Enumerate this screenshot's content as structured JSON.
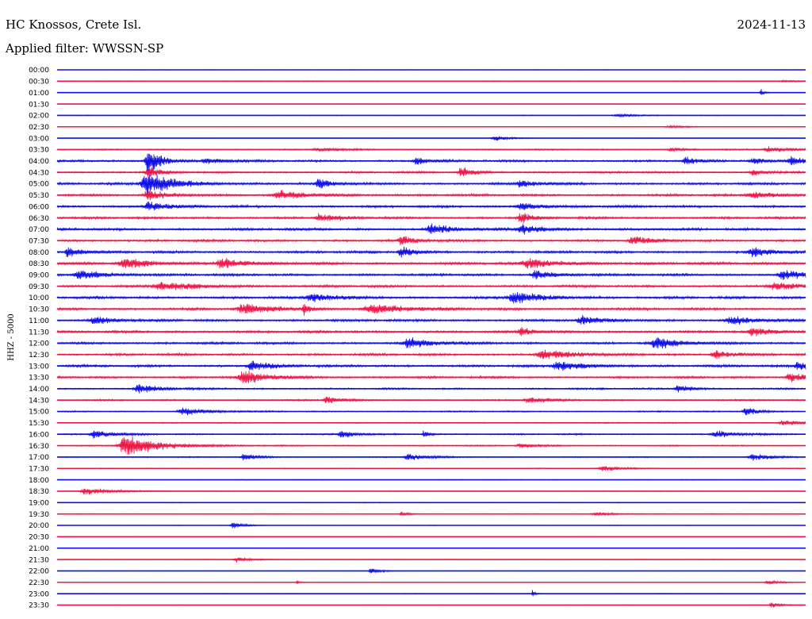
{
  "header": {
    "station": "HC Knossos, Crete Isl.",
    "filter": "Applied filter: WWSSN-SP",
    "date": "2024-11-13"
  },
  "colors": {
    "blue": "#1010e6",
    "red": "#ee1848"
  },
  "chart_data": {
    "type": "line",
    "title": "HC Knossos, Crete Isl.",
    "subtitle": "Applied filter: WWSSN-SP",
    "date": "2024-11-13",
    "ylabel": "HHZ - 5000",
    "xlabel": "",
    "grid": false,
    "rows": [
      {
        "label": "00:00",
        "color": "blue",
        "noise": 0.25,
        "events": []
      },
      {
        "label": "00:30",
        "color": "red",
        "noise": 0.4,
        "events": [
          {
            "x": 0.97,
            "amp": 0.25,
            "dur": 0.03
          }
        ]
      },
      {
        "label": "01:00",
        "color": "blue",
        "noise": 0.25,
        "events": [
          {
            "x": 0.94,
            "amp": 1.3,
            "dur": 0.006
          }
        ]
      },
      {
        "label": "01:30",
        "color": "red",
        "noise": 0.25,
        "events": []
      },
      {
        "label": "02:00",
        "color": "blue",
        "noise": 0.35,
        "events": [
          {
            "x": 0.75,
            "amp": 0.4,
            "dur": 0.04
          }
        ]
      },
      {
        "label": "02:30",
        "color": "red",
        "noise": 0.3,
        "events": [
          {
            "x": 0.82,
            "amp": 0.3,
            "dur": 0.04
          }
        ]
      },
      {
        "label": "03:00",
        "color": "blue",
        "noise": 0.25,
        "events": [
          {
            "x": 0.585,
            "amp": 0.9,
            "dur": 0.02
          }
        ]
      },
      {
        "label": "03:30",
        "color": "red",
        "noise": 0.7,
        "events": [
          {
            "x": 0.35,
            "amp": 0.5,
            "dur": 0.04
          },
          {
            "x": 0.82,
            "amp": 0.7,
            "dur": 0.02
          },
          {
            "x": 0.95,
            "amp": 0.9,
            "dur": 0.03
          }
        ]
      },
      {
        "label": "04:00",
        "color": "blue",
        "noise": 1.2,
        "events": [
          {
            "x": 0.122,
            "amp": 4.2,
            "dur": 0.02
          },
          {
            "x": 0.2,
            "amp": 0.9,
            "dur": 0.03
          },
          {
            "x": 0.48,
            "amp": 1.2,
            "dur": 0.02
          },
          {
            "x": 0.84,
            "amp": 1.0,
            "dur": 0.02
          },
          {
            "x": 0.93,
            "amp": 1.0,
            "dur": 0.02
          },
          {
            "x": 0.98,
            "amp": 1.2,
            "dur": 0.03
          }
        ]
      },
      {
        "label": "04:30",
        "color": "red",
        "noise": 1.1,
        "events": [
          {
            "x": 0.122,
            "amp": 1.6,
            "dur": 0.02
          },
          {
            "x": 0.54,
            "amp": 1.5,
            "dur": 0.02
          },
          {
            "x": 0.93,
            "amp": 1.0,
            "dur": 0.02
          }
        ]
      },
      {
        "label": "05:00",
        "color": "blue",
        "noise": 1.3,
        "events": [
          {
            "x": 0.122,
            "amp": 3.6,
            "dur": 0.04
          },
          {
            "x": 0.35,
            "amp": 1.4,
            "dur": 0.02
          },
          {
            "x": 0.62,
            "amp": 0.9,
            "dur": 0.03
          }
        ]
      },
      {
        "label": "05:30",
        "color": "red",
        "noise": 1.2,
        "events": [
          {
            "x": 0.122,
            "amp": 1.5,
            "dur": 0.03
          },
          {
            "x": 0.3,
            "amp": 1.1,
            "dur": 0.05
          },
          {
            "x": 0.93,
            "amp": 1.0,
            "dur": 0.04
          }
        ]
      },
      {
        "label": "06:00",
        "color": "blue",
        "noise": 1.3,
        "events": [
          {
            "x": 0.122,
            "amp": 1.4,
            "dur": 0.03
          },
          {
            "x": 0.62,
            "amp": 1.1,
            "dur": 0.03
          }
        ]
      },
      {
        "label": "06:30",
        "color": "red",
        "noise": 1.3,
        "events": [
          {
            "x": 0.35,
            "amp": 1.2,
            "dur": 0.03
          },
          {
            "x": 0.62,
            "amp": 1.5,
            "dur": 0.02
          }
        ]
      },
      {
        "label": "07:00",
        "color": "blue",
        "noise": 1.4,
        "events": [
          {
            "x": 0.5,
            "amp": 1.6,
            "dur": 0.03
          },
          {
            "x": 0.62,
            "amp": 1.5,
            "dur": 0.03
          }
        ]
      },
      {
        "label": "07:30",
        "color": "red",
        "noise": 1.3,
        "events": [
          {
            "x": 0.46,
            "amp": 1.4,
            "dur": 0.02
          },
          {
            "x": 0.77,
            "amp": 1.2,
            "dur": 0.03
          }
        ]
      },
      {
        "label": "08:00",
        "color": "blue",
        "noise": 1.3,
        "events": [
          {
            "x": 0.015,
            "amp": 1.6,
            "dur": 0.02
          },
          {
            "x": 0.46,
            "amp": 1.6,
            "dur": 0.02
          },
          {
            "x": 0.93,
            "amp": 1.5,
            "dur": 0.03
          }
        ]
      },
      {
        "label": "08:30",
        "color": "red",
        "noise": 1.4,
        "events": [
          {
            "x": 0.09,
            "amp": 1.4,
            "dur": 0.05
          },
          {
            "x": 0.22,
            "amp": 1.7,
            "dur": 0.03
          },
          {
            "x": 0.63,
            "amp": 1.3,
            "dur": 0.05
          }
        ]
      },
      {
        "label": "09:00",
        "color": "blue",
        "noise": 1.3,
        "events": [
          {
            "x": 0.03,
            "amp": 1.4,
            "dur": 0.04
          },
          {
            "x": 0.64,
            "amp": 1.4,
            "dur": 0.03
          },
          {
            "x": 0.97,
            "amp": 1.4,
            "dur": 0.04
          }
        ]
      },
      {
        "label": "09:30",
        "color": "red",
        "noise": 1.3,
        "events": [
          {
            "x": 0.14,
            "amp": 1.3,
            "dur": 0.06
          },
          {
            "x": 0.96,
            "amp": 1.2,
            "dur": 0.04
          }
        ]
      },
      {
        "label": "10:00",
        "color": "blue",
        "noise": 1.4,
        "events": [
          {
            "x": 0.34,
            "amp": 1.3,
            "dur": 0.04
          },
          {
            "x": 0.61,
            "amp": 1.7,
            "dur": 0.04
          }
        ]
      },
      {
        "label": "10:30",
        "color": "red",
        "noise": 1.4,
        "events": [
          {
            "x": 0.25,
            "amp": 1.4,
            "dur": 0.05
          },
          {
            "x": 0.33,
            "amp": 1.5,
            "dur": 0.01
          },
          {
            "x": 0.42,
            "amp": 1.3,
            "dur": 0.06
          }
        ]
      },
      {
        "label": "11:00",
        "color": "blue",
        "noise": 1.3,
        "events": [
          {
            "x": 0.05,
            "amp": 1.3,
            "dur": 0.03
          },
          {
            "x": 0.7,
            "amp": 1.3,
            "dur": 0.03
          },
          {
            "x": 0.9,
            "amp": 1.3,
            "dur": 0.04
          }
        ]
      },
      {
        "label": "11:30",
        "color": "red",
        "noise": 1.3,
        "events": [
          {
            "x": 0.62,
            "amp": 1.3,
            "dur": 0.02
          },
          {
            "x": 0.93,
            "amp": 1.2,
            "dur": 0.03
          }
        ]
      },
      {
        "label": "12:00",
        "color": "blue",
        "noise": 1.3,
        "events": [
          {
            "x": 0.47,
            "amp": 1.4,
            "dur": 0.04
          },
          {
            "x": 0.8,
            "amp": 1.5,
            "dur": 0.04
          }
        ]
      },
      {
        "label": "12:30",
        "color": "red",
        "noise": 1.3,
        "events": [
          {
            "x": 0.65,
            "amp": 1.3,
            "dur": 0.05
          },
          {
            "x": 0.88,
            "amp": 1.2,
            "dur": 0.03
          }
        ]
      },
      {
        "label": "13:00",
        "color": "blue",
        "noise": 1.3,
        "events": [
          {
            "x": 0.26,
            "amp": 1.5,
            "dur": 0.03
          },
          {
            "x": 0.67,
            "amp": 1.4,
            "dur": 0.04
          },
          {
            "x": 0.99,
            "amp": 1.2,
            "dur": 0.02
          }
        ]
      },
      {
        "label": "13:30",
        "color": "red",
        "noise": 1.2,
        "events": [
          {
            "x": 0.25,
            "amp": 1.9,
            "dur": 0.04
          },
          {
            "x": 0.98,
            "amp": 1.3,
            "dur": 0.03
          }
        ]
      },
      {
        "label": "14:00",
        "color": "blue",
        "noise": 0.9,
        "events": [
          {
            "x": 0.11,
            "amp": 1.3,
            "dur": 0.03
          },
          {
            "x": 0.83,
            "amp": 1.3,
            "dur": 0.02
          }
        ]
      },
      {
        "label": "14:30",
        "color": "red",
        "noise": 0.8,
        "events": [
          {
            "x": 0.36,
            "amp": 1.2,
            "dur": 0.02
          },
          {
            "x": 0.63,
            "amp": 1.0,
            "dur": 0.03
          }
        ]
      },
      {
        "label": "15:00",
        "color": "blue",
        "noise": 0.7,
        "events": [
          {
            "x": 0.17,
            "amp": 1.1,
            "dur": 0.04
          },
          {
            "x": 0.92,
            "amp": 1.3,
            "dur": 0.02
          }
        ]
      },
      {
        "label": "15:30",
        "color": "red",
        "noise": 0.6,
        "events": [
          {
            "x": 0.97,
            "amp": 0.8,
            "dur": 0.03
          }
        ]
      },
      {
        "label": "16:00",
        "color": "blue",
        "noise": 0.8,
        "events": [
          {
            "x": 0.05,
            "amp": 1.1,
            "dur": 0.03
          },
          {
            "x": 0.38,
            "amp": 1.2,
            "dur": 0.02
          },
          {
            "x": 0.49,
            "amp": 1.0,
            "dur": 0.01
          },
          {
            "x": 0.88,
            "amp": 1.0,
            "dur": 0.03
          }
        ]
      },
      {
        "label": "16:30",
        "color": "red",
        "noise": 0.6,
        "events": [
          {
            "x": 0.093,
            "amp": 3.2,
            "dur": 0.05
          },
          {
            "x": 0.62,
            "amp": 0.7,
            "dur": 0.03
          }
        ]
      },
      {
        "label": "17:00",
        "color": "blue",
        "noise": 0.6,
        "events": [
          {
            "x": 0.25,
            "amp": 1.1,
            "dur": 0.02
          },
          {
            "x": 0.47,
            "amp": 1.0,
            "dur": 0.03
          },
          {
            "x": 0.93,
            "amp": 1.1,
            "dur": 0.03
          }
        ]
      },
      {
        "label": "17:30",
        "color": "red",
        "noise": 0.4,
        "events": [
          {
            "x": 0.73,
            "amp": 0.9,
            "dur": 0.03
          }
        ]
      },
      {
        "label": "18:00",
        "color": "blue",
        "noise": 0.4,
        "events": []
      },
      {
        "label": "18:30",
        "color": "red",
        "noise": 0.4,
        "events": [
          {
            "x": 0.04,
            "amp": 1.1,
            "dur": 0.04
          }
        ]
      },
      {
        "label": "19:00",
        "color": "blue",
        "noise": 0.4,
        "events": []
      },
      {
        "label": "19:30",
        "color": "red",
        "noise": 0.4,
        "events": [
          {
            "x": 0.46,
            "amp": 0.9,
            "dur": 0.01
          },
          {
            "x": 0.72,
            "amp": 0.6,
            "dur": 0.03
          }
        ]
      },
      {
        "label": "20:00",
        "color": "blue",
        "noise": 0.3,
        "events": [
          {
            "x": 0.235,
            "amp": 1.1,
            "dur": 0.015
          }
        ]
      },
      {
        "label": "20:30",
        "color": "red",
        "noise": 0.3,
        "events": []
      },
      {
        "label": "21:00",
        "color": "blue",
        "noise": 0.3,
        "events": []
      },
      {
        "label": "21:30",
        "color": "red",
        "noise": 0.3,
        "events": [
          {
            "x": 0.24,
            "amp": 0.8,
            "dur": 0.02
          }
        ]
      },
      {
        "label": "22:00",
        "color": "blue",
        "noise": 0.3,
        "events": [
          {
            "x": 0.42,
            "amp": 0.9,
            "dur": 0.015
          }
        ]
      },
      {
        "label": "22:30",
        "color": "red",
        "noise": 0.3,
        "events": [
          {
            "x": 0.32,
            "amp": 0.6,
            "dur": 0.005
          },
          {
            "x": 0.95,
            "amp": 0.6,
            "dur": 0.02
          }
        ]
      },
      {
        "label": "23:00",
        "color": "blue",
        "noise": 0.3,
        "events": [
          {
            "x": 0.635,
            "amp": 1.3,
            "dur": 0.004
          }
        ]
      },
      {
        "label": "23:30",
        "color": "red",
        "noise": 0.3,
        "events": [
          {
            "x": 0.955,
            "amp": 0.9,
            "dur": 0.015
          }
        ]
      }
    ]
  }
}
